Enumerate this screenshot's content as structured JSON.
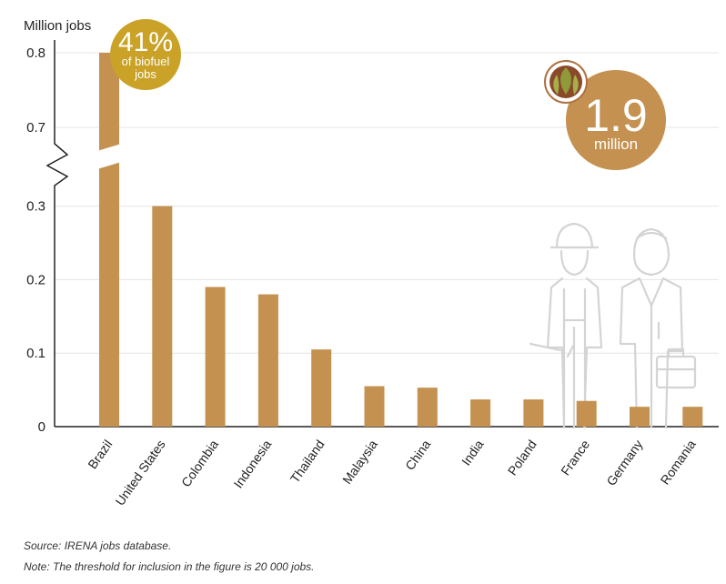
{
  "chart_data": {
    "type": "bar",
    "ylabel": "Million jobs",
    "categories": [
      "Brazil",
      "United States",
      "Colombia",
      "Indonesia",
      "Thailand",
      "Malaysia",
      "China",
      "India",
      "Poland",
      "France",
      "Germany",
      "Romania"
    ],
    "values": [
      0.8,
      0.3,
      0.19,
      0.18,
      0.105,
      0.055,
      0.053,
      0.037,
      0.037,
      0.035,
      0.027,
      0.027
    ],
    "yticks": [
      "0.8",
      "0.7",
      "0.3",
      "0.2",
      "0.1",
      "0"
    ],
    "axis_break": "between 0.3 and 0.7",
    "bar_color": "#c49150",
    "grid": true
  },
  "badge_share": {
    "value": "41%",
    "line1": "of biofuel",
    "line2": "jobs",
    "color": "#c9a227"
  },
  "badge_total": {
    "value": "1.9",
    "unit": "million",
    "color": "#c49150",
    "icon": "biofuel-leaf-icon"
  },
  "illustration": "worker-figures-icon",
  "footnotes": {
    "source": "Source: IRENA jobs database.",
    "note": "Note: The threshold for inclusion in the figure is 20 000 jobs."
  }
}
